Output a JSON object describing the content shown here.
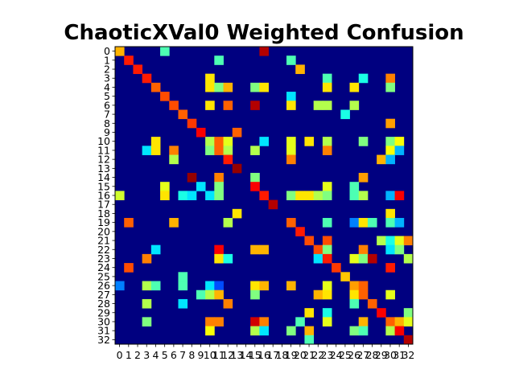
{
  "chart_data": {
    "type": "heatmap",
    "title": "ChaoticXVal0 Weighted Confusion",
    "xlabel": "",
    "ylabel": "",
    "colormap": "jet",
    "vmin": 0,
    "vmax": 1,
    "grid": false,
    "x_ticks": [
      0,
      1,
      2,
      3,
      4,
      5,
      6,
      7,
      8,
      9,
      10,
      11,
      12,
      13,
      14,
      15,
      16,
      17,
      18,
      19,
      20,
      21,
      22,
      23,
      24,
      25,
      26,
      27,
      28,
      29,
      30,
      31,
      32
    ],
    "y_ticks": [
      0,
      1,
      2,
      3,
      4,
      5,
      6,
      7,
      8,
      9,
      10,
      11,
      12,
      13,
      14,
      15,
      16,
      17,
      18,
      19,
      20,
      21,
      22,
      23,
      24,
      25,
      26,
      27,
      28,
      29,
      30,
      31,
      32
    ],
    "background_value": 0,
    "cells": [
      [
        0,
        0,
        0.7
      ],
      [
        0,
        5,
        0.45
      ],
      [
        0,
        16,
        0.95
      ],
      [
        1,
        1,
        0.85
      ],
      [
        1,
        11,
        0.45
      ],
      [
        1,
        19,
        0.45
      ],
      [
        2,
        2,
        0.85
      ],
      [
        2,
        20,
        0.7
      ],
      [
        3,
        3,
        0.85
      ],
      [
        3,
        10,
        0.65
      ],
      [
        3,
        23,
        0.45
      ],
      [
        3,
        27,
        0.4
      ],
      [
        3,
        30,
        0.75
      ],
      [
        4,
        4,
        0.78
      ],
      [
        4,
        10,
        0.65
      ],
      [
        4,
        11,
        0.5
      ],
      [
        4,
        12,
        0.7
      ],
      [
        4,
        15,
        0.5
      ],
      [
        4,
        16,
        0.65
      ],
      [
        4,
        23,
        0.65
      ],
      [
        4,
        26,
        0.65
      ],
      [
        4,
        30,
        0.5
      ],
      [
        5,
        5,
        0.8
      ],
      [
        5,
        19,
        0.35
      ],
      [
        6,
        6,
        0.8
      ],
      [
        6,
        10,
        0.65
      ],
      [
        6,
        12,
        0.78
      ],
      [
        6,
        15,
        0.95
      ],
      [
        6,
        19,
        0.65
      ],
      [
        6,
        22,
        0.55
      ],
      [
        6,
        23,
        0.55
      ],
      [
        6,
        26,
        0.55
      ],
      [
        7,
        7,
        0.78
      ],
      [
        7,
        25,
        0.4
      ],
      [
        8,
        8,
        0.82
      ],
      [
        8,
        30,
        0.72
      ],
      [
        9,
        9,
        0.88
      ],
      [
        9,
        13,
        0.78
      ],
      [
        10,
        4,
        0.65
      ],
      [
        10,
        10,
        0.55
      ],
      [
        10,
        11,
        0.78
      ],
      [
        10,
        12,
        0.6
      ],
      [
        10,
        16,
        0.35
      ],
      [
        10,
        19,
        0.6
      ],
      [
        10,
        21,
        0.65
      ],
      [
        10,
        23,
        0.55
      ],
      [
        10,
        27,
        0.5
      ],
      [
        10,
        30,
        0.5
      ],
      [
        10,
        31,
        0.62
      ],
      [
        11,
        3,
        0.35
      ],
      [
        11,
        4,
        0.65
      ],
      [
        11,
        6,
        0.75
      ],
      [
        11,
        10,
        0.5
      ],
      [
        11,
        11,
        0.78
      ],
      [
        11,
        12,
        0.55
      ],
      [
        11,
        15,
        0.55
      ],
      [
        11,
        19,
        0.6
      ],
      [
        11,
        23,
        0.75
      ],
      [
        11,
        30,
        0.62
      ],
      [
        11,
        31,
        0.3
      ],
      [
        12,
        6,
        0.55
      ],
      [
        12,
        12,
        0.85
      ],
      [
        12,
        19,
        0.75
      ],
      [
        12,
        29,
        0.7
      ],
      [
        12,
        30,
        0.3
      ],
      [
        13,
        13,
        0.98
      ],
      [
        14,
        8,
        0.98
      ],
      [
        14,
        11,
        0.75
      ],
      [
        14,
        15,
        0.5
      ],
      [
        14,
        27,
        0.72
      ],
      [
        15,
        5,
        0.6
      ],
      [
        15,
        9,
        0.35
      ],
      [
        15,
        11,
        0.5
      ],
      [
        15,
        15,
        0.88
      ],
      [
        15,
        23,
        0.6
      ],
      [
        15,
        26,
        0.45
      ],
      [
        16,
        0,
        0.58
      ],
      [
        16,
        5,
        0.65
      ],
      [
        16,
        7,
        0.4
      ],
      [
        16,
        8,
        0.35
      ],
      [
        16,
        10,
        0.35
      ],
      [
        16,
        11,
        0.5
      ],
      [
        16,
        16,
        0.85
      ],
      [
        16,
        19,
        0.5
      ],
      [
        16,
        20,
        0.65
      ],
      [
        16,
        21,
        0.65
      ],
      [
        16,
        22,
        0.55
      ],
      [
        16,
        23,
        0.5
      ],
      [
        16,
        26,
        0.45
      ],
      [
        16,
        27,
        0.55
      ],
      [
        16,
        30,
        0.3
      ],
      [
        16,
        31,
        0.88
      ],
      [
        17,
        17,
        0.95
      ],
      [
        18,
        13,
        0.65
      ],
      [
        18,
        30,
        0.65
      ],
      [
        19,
        1,
        0.78
      ],
      [
        19,
        6,
        0.7
      ],
      [
        19,
        12,
        0.55
      ],
      [
        19,
        19,
        0.78
      ],
      [
        19,
        23,
        0.45
      ],
      [
        19,
        26,
        0.25
      ],
      [
        19,
        27,
        0.65
      ],
      [
        19,
        28,
        0.45
      ],
      [
        19,
        30,
        0.45
      ],
      [
        19,
        31,
        0.3
      ],
      [
        20,
        20,
        0.85
      ],
      [
        21,
        21,
        0.8
      ],
      [
        21,
        23,
        0.8
      ],
      [
        21,
        29,
        0.55
      ],
      [
        21,
        30,
        0.4
      ],
      [
        21,
        31,
        0.6
      ],
      [
        21,
        32,
        0.75
      ],
      [
        22,
        4,
        0.35
      ],
      [
        22,
        11,
        0.88
      ],
      [
        22,
        15,
        0.7
      ],
      [
        22,
        16,
        0.7
      ],
      [
        22,
        22,
        0.8
      ],
      [
        22,
        23,
        0.5
      ],
      [
        22,
        27,
        0.75
      ],
      [
        22,
        30,
        0.35
      ],
      [
        22,
        31,
        0.5
      ],
      [
        23,
        3,
        0.75
      ],
      [
        23,
        11,
        0.65
      ],
      [
        23,
        12,
        0.4
      ],
      [
        23,
        22,
        0.35
      ],
      [
        23,
        23,
        0.85
      ],
      [
        23,
        26,
        0.6
      ],
      [
        23,
        27,
        0.5
      ],
      [
        23,
        28,
        0.95
      ],
      [
        23,
        32,
        0.55
      ],
      [
        24,
        1,
        0.8
      ],
      [
        24,
        24,
        0.82
      ],
      [
        24,
        30,
        0.85
      ],
      [
        25,
        7,
        0.45
      ],
      [
        25,
        25,
        0.68
      ],
      [
        26,
        0,
        0.25
      ],
      [
        26,
        3,
        0.55
      ],
      [
        26,
        4,
        0.45
      ],
      [
        26,
        7,
        0.45
      ],
      [
        26,
        10,
        0.35
      ],
      [
        26,
        11,
        0.2
      ],
      [
        26,
        15,
        0.65
      ],
      [
        26,
        16,
        0.7
      ],
      [
        26,
        19,
        0.7
      ],
      [
        26,
        23,
        0.6
      ],
      [
        26,
        26,
        0.72
      ],
      [
        26,
        27,
        0.78
      ],
      [
        27,
        9,
        0.45
      ],
      [
        27,
        10,
        0.55
      ],
      [
        27,
        11,
        0.7
      ],
      [
        27,
        15,
        0.5
      ],
      [
        27,
        22,
        0.7
      ],
      [
        27,
        23,
        0.65
      ],
      [
        27,
        26,
        0.65
      ],
      [
        27,
        27,
        0.78
      ],
      [
        27,
        30,
        0.6
      ],
      [
        28,
        3,
        0.55
      ],
      [
        28,
        7,
        0.35
      ],
      [
        28,
        12,
        0.75
      ],
      [
        28,
        26,
        0.45
      ],
      [
        28,
        28,
        0.78
      ],
      [
        29,
        21,
        0.65
      ],
      [
        29,
        23,
        0.4
      ],
      [
        29,
        29,
        0.88
      ],
      [
        29,
        32,
        0.5
      ],
      [
        30,
        3,
        0.5
      ],
      [
        30,
        10,
        0.75
      ],
      [
        30,
        11,
        0.75
      ],
      [
        30,
        15,
        0.92
      ],
      [
        30,
        16,
        0.75
      ],
      [
        30,
        20,
        0.45
      ],
      [
        30,
        23,
        0.6
      ],
      [
        30,
        27,
        0.7
      ],
      [
        30,
        30,
        0.78
      ],
      [
        30,
        31,
        0.7
      ],
      [
        30,
        32,
        0.6
      ],
      [
        31,
        10,
        0.62
      ],
      [
        31,
        15,
        0.55
      ],
      [
        31,
        16,
        0.35
      ],
      [
        31,
        19,
        0.5
      ],
      [
        31,
        21,
        0.7
      ],
      [
        31,
        26,
        0.5
      ],
      [
        31,
        27,
        0.45
      ],
      [
        31,
        30,
        0.55
      ],
      [
        31,
        31,
        0.88
      ],
      [
        32,
        21,
        0.45
      ],
      [
        32,
        32,
        0.95
      ]
    ]
  }
}
